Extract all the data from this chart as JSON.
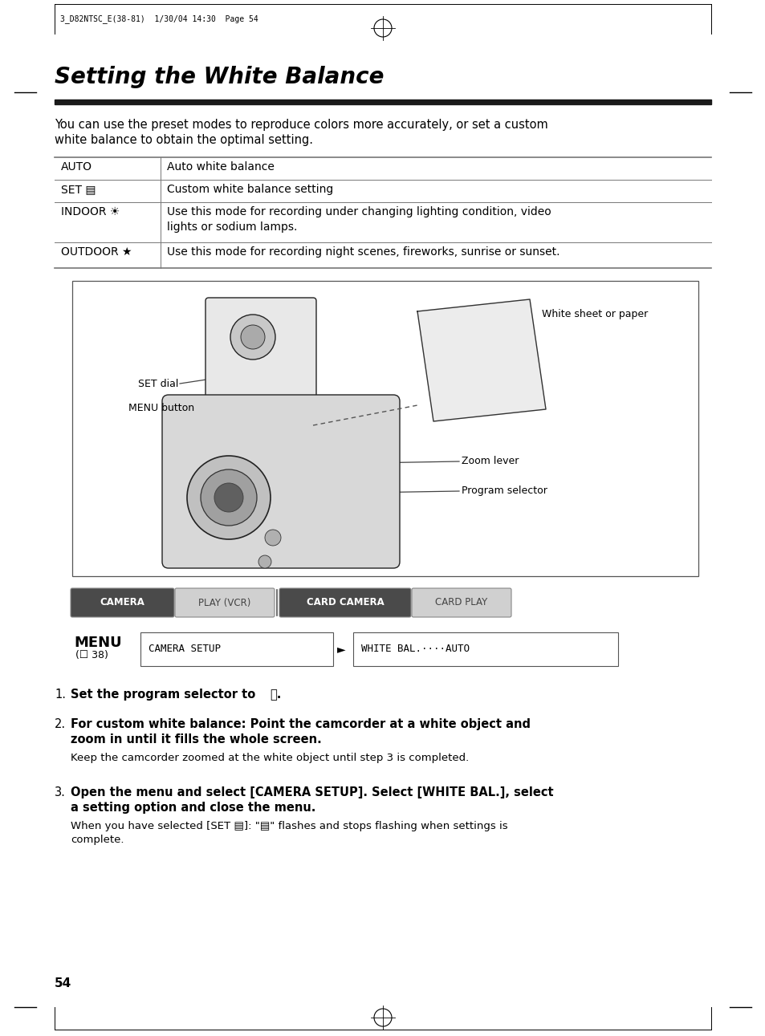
{
  "page_bg": "#ffffff",
  "page_number": "54",
  "header_text": "3_D82NTSC_E(38-81)  1/30/04 14:30  Page 54",
  "title": "Setting the White Balance",
  "intro_line1": "You can use the preset modes to reproduce colors more accurately, or set a custom",
  "intro_line2": "white balance to obtain the optimal setting.",
  "table_rows": [
    {
      "label": "AUTO",
      "desc": "Auto white balance"
    },
    {
      "label": "SET ▤",
      "desc": "Custom white balance setting"
    },
    {
      "label": "INDOOR ☀",
      "desc": "Use this mode for recording under changing lighting condition, video\nlights or sodium lamps."
    },
    {
      "label": "OUTDOOR ★",
      "desc": "Use this mode for recording night scenes, fireworks, sunrise or sunset."
    }
  ],
  "mode_bar": {
    "camera_bg": "#4a4a4a",
    "camera_text": "CAMERA",
    "play_bg": "#d0d0d0",
    "play_text": "PLAY (VCR)",
    "card_camera_bg": "#4a4a4a",
    "card_camera_text": "CARD CAMERA",
    "card_play_bg": "#d0d0d0",
    "card_play_text": "CARD PLAY"
  },
  "menu_setup_text": "CAMERA SETUP",
  "menu_result_text": "WHITE BAL.····AUTO",
  "step1_bold": "Set the program selector to ",
  "step1_end": "Ⓟ.",
  "step2_bold1": "For custom white balance: Point the camcorder at a white object and",
  "step2_bold2": "zoom in until it fills the whole screen.",
  "step2_normal": "Keep the camcorder zoomed at the white object until step 3 is completed.",
  "step3_bold1": "Open the menu and select [CAMERA SETUP]. Select [WHITE BAL.], select",
  "step3_bold2": "a setting option and close the menu.",
  "step3_normal1": "When you have selected [SET ▤]: \"▤\" flashes and stops flashing when settings is",
  "step3_normal2": "complete."
}
